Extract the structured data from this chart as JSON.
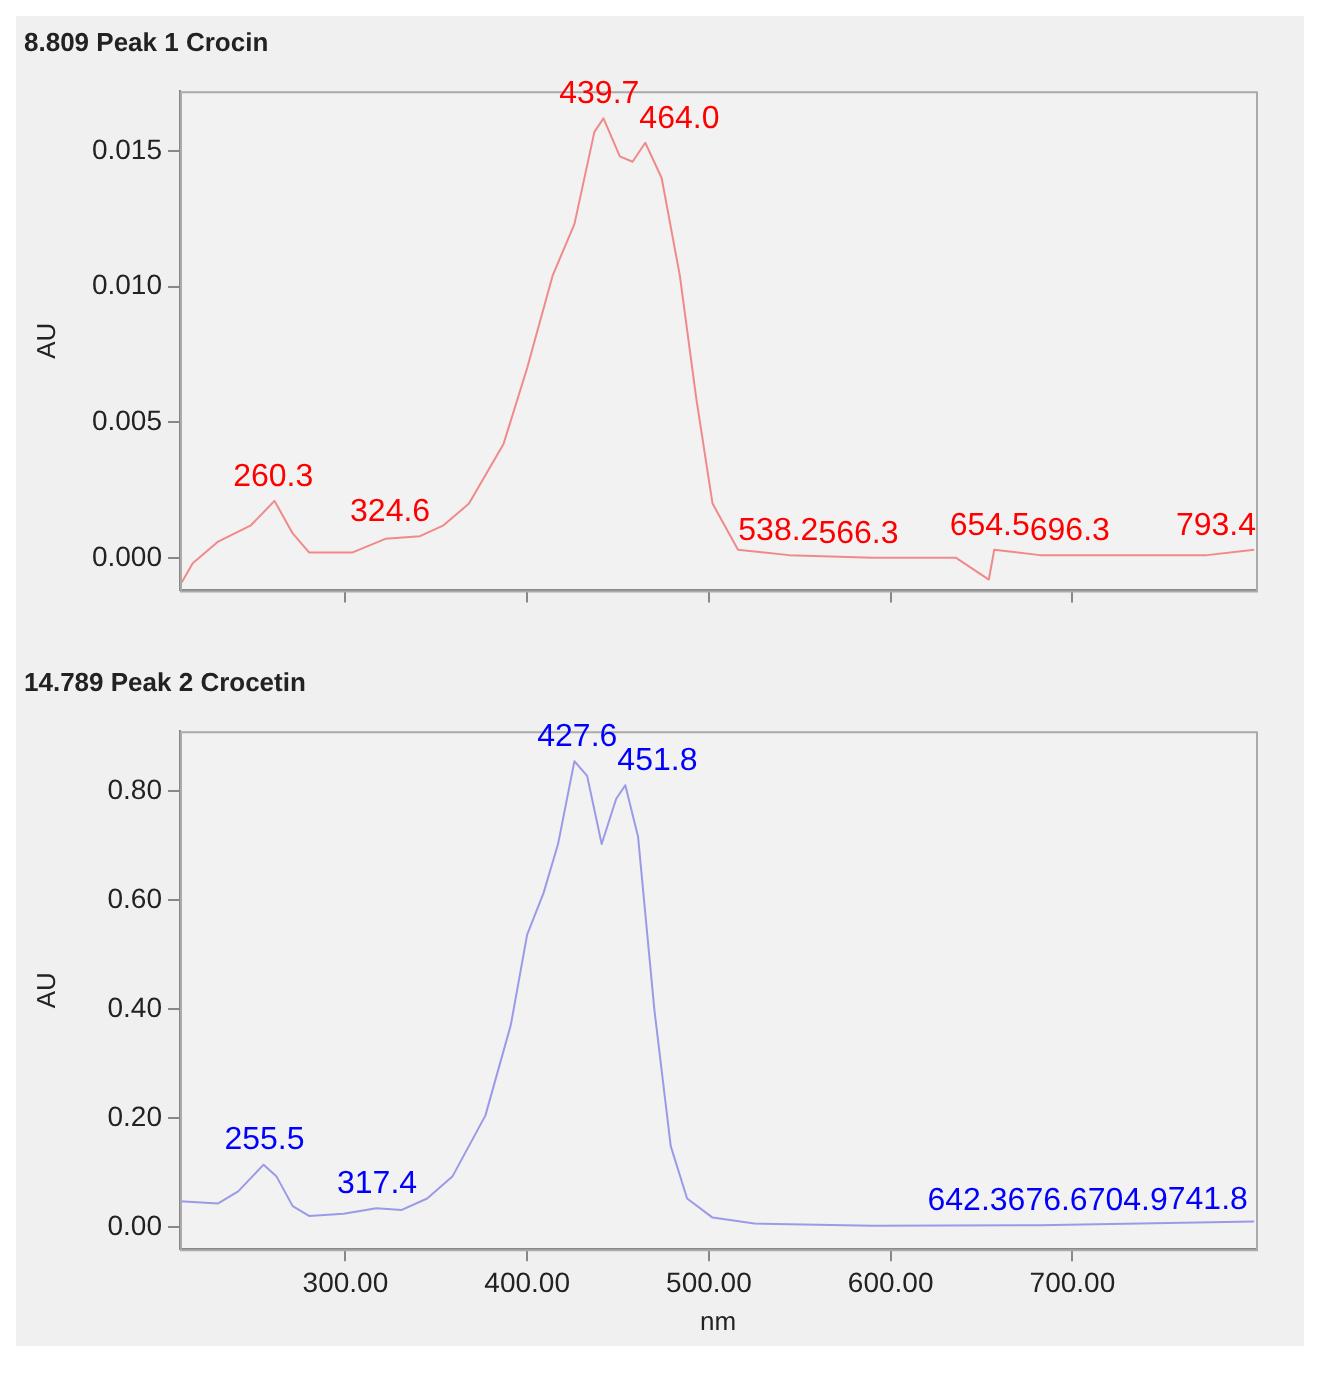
{
  "chart_data": [
    {
      "type": "line",
      "title": "8.809 Peak 1 Crocin",
      "ylabel": "AU",
      "xlim": [
        209,
        801
      ],
      "xticks": [
        {
          "value": 300,
          "label": null
        },
        {
          "value": 400,
          "label": null
        },
        {
          "value": 500,
          "label": null
        },
        {
          "value": 600,
          "label": null
        },
        {
          "value": 700,
          "label": null
        }
      ],
      "tick_labels": "y",
      "ylim": [
        -0.0012,
        0.0172
      ],
      "yticks": [
        {
          "value": 0,
          "label": "0.000"
        },
        {
          "value": 0.005,
          "label": "0.005"
        },
        {
          "value": 0.01,
          "label": "0.010"
        },
        {
          "value": 0.015,
          "label": "0.015"
        }
      ],
      "grid": false,
      "legend": false,
      "marker": "none",
      "series": [
        {
          "color": "#f08a8a",
          "x": [
            210,
            216,
            230,
            248,
            261,
            271,
            280,
            304,
            322,
            341,
            354,
            368,
            387,
            400,
            414,
            426,
            437,
            442,
            451,
            458,
            465,
            474,
            484,
            493,
            502,
            516,
            544,
            590,
            636,
            654,
            657,
            682,
            728,
            774,
            800
          ],
          "values": [
            -0.0009,
            -0.0002,
            0.0006,
            0.0012,
            0.0021,
            0.0009,
            0.0002,
            0.0002,
            0.0007,
            0.0008,
            0.0012,
            0.002,
            0.0042,
            0.007,
            0.0104,
            0.0123,
            0.0157,
            0.0162,
            0.0148,
            0.0146,
            0.0153,
            0.014,
            0.0104,
            0.0059,
            0.002,
            0.0003,
            0.0001,
            0,
            0,
            -0.0008,
            0.0003,
            0.0001,
            0.0001,
            0.0001,
            0.0003
          ]
        }
      ],
      "annotations": [
        {
          "text": "260.3",
          "x": 260.3,
          "y": 0.0021
        },
        {
          "text": "324.6",
          "x": 324.6,
          "y": 0.0008
        },
        {
          "text": "439.7",
          "x": 439.7,
          "y": 0.0162
        },
        {
          "text": "464.0",
          "x": 464,
          "y": 0.0153
        },
        {
          "text": "538.2",
          "x": 538.2,
          "y": 0.0001
        },
        {
          "text": "566.3",
          "x": 566.3,
          "y": 0
        },
        {
          "text": "654.5",
          "x": 654.5,
          "y": 0.0003
        },
        {
          "text": "696.3",
          "x": 696.3,
          "y": 0.0001
        },
        {
          "text": "793.4",
          "x": 793.4,
          "y": 0.0003
        }
      ]
    },
    {
      "type": "line",
      "title": "14.789 Peak 2 Crocetin",
      "xlabel": "nm",
      "ylabel": "AU",
      "xlim": [
        209,
        801
      ],
      "xticks": [
        {
          "value": 300,
          "label": "300.00"
        },
        {
          "value": 400,
          "label": "400.00"
        },
        {
          "value": 500,
          "label": "500.00"
        },
        {
          "value": 600,
          "label": "600.00"
        },
        {
          "value": 700,
          "label": "700.00"
        }
      ],
      "ylim": [
        -0.04,
        0.91
      ],
      "yticks": [
        {
          "value": 0,
          "label": "0.00"
        },
        {
          "value": 0.2,
          "label": "0.20"
        },
        {
          "value": 0.4,
          "label": "0.40"
        },
        {
          "value": 0.6,
          "label": "0.60"
        },
        {
          "value": 0.8,
          "label": "0.80"
        }
      ],
      "grid": false,
      "legend": false,
      "marker": "none",
      "series": [
        {
          "color": "#9a9ae8",
          "x": [
            209,
            230,
            241,
            255,
            262,
            271,
            280,
            299,
            317,
            331,
            345,
            359,
            377,
            391,
            400,
            409,
            417,
            426,
            433,
            441,
            449,
            454,
            461,
            470,
            479,
            488,
            502,
            525,
            590,
            682,
            800
          ],
          "values": [
            0.048,
            0.044,
            0.066,
            0.115,
            0.094,
            0.039,
            0.021,
            0.025,
            0.035,
            0.032,
            0.053,
            0.094,
            0.205,
            0.371,
            0.537,
            0.613,
            0.703,
            0.855,
            0.828,
            0.703,
            0.786,
            0.811,
            0.717,
            0.399,
            0.149,
            0.053,
            0.018,
            0.007,
            0.003,
            0.004,
            0.011
          ]
        }
      ],
      "annotations": [
        {
          "text": "255.5",
          "x": 255.5,
          "y": 0.115
        },
        {
          "text": "317.4",
          "x": 317.4,
          "y": 0.035
        },
        {
          "text": "427.6",
          "x": 427.6,
          "y": 0.855
        },
        {
          "text": "451.8",
          "x": 451.8,
          "y": 0.811
        },
        {
          "text": "642.3",
          "x": 642.3,
          "y": 0.004
        },
        {
          "text": "676.6",
          "x": 676.6,
          "y": 0.004
        },
        {
          "text": "704.9",
          "x": 704.9,
          "y": 0.004
        },
        {
          "text": "741.8",
          "x": 741.8,
          "y": 0.005
        }
      ]
    }
  ]
}
